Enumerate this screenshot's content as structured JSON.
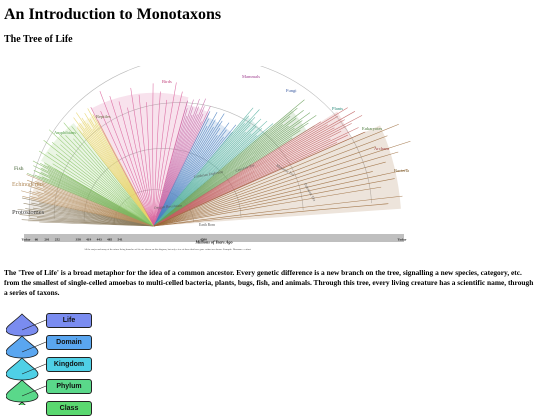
{
  "page": {
    "title": "An Introduction to Monotaxons",
    "subtitle": "The Tree of Life",
    "intro": "The 'Tree of Life' is a broad metaphor for the idea of a common ancestor. Every genetic difference is a new branch on the tree, signalling a new species, category, etc. from the smallest of single-celled amoebas to multi-celled bacteria, plants, bugs, fish, and animals. Through this tree, every living creature has a scientific name, through a series of taxons."
  },
  "tree": {
    "groups": [
      "Protostomes",
      "Echinoderms",
      "Fish",
      "Amphibians",
      "Reptiles",
      "Birds",
      "Mammals",
      "Fungi",
      "Plants",
      "Eukaryotes",
      "Archaea",
      "Bacteria"
    ],
    "eras": [
      "Cambrian Explosion",
      "Cenozoic Era",
      "Mesozoic Era",
      "Paleozoic Era",
      "Oxygen Revolution",
      "Earth Born"
    ],
    "axis_title": "Millions of Years Ago",
    "axis_ticks": [
      "Today",
      "66",
      "201",
      "252",
      "",
      "358",
      "419",
      "443",
      "485",
      "541",
      "",
      "",
      "",
      "",
      "",
      "",
      "",
      "4500",
      "",
      "",
      "",
      "",
      "",
      "",
      "",
      "",
      "",
      "",
      "",
      "",
      "",
      "",
      "",
      "",
      "",
      "",
      "Today"
    ],
    "caption": "All the major and many of the minor living branches of life are shown on this diagram, but only a few of those that have gone extinct are shown. Example: Dinosaurs - extinct",
    "colors": {
      "bacteria": "#8a7a5c",
      "archaea": "#b08a5a",
      "eukaryotes": "#7cb45c",
      "plants": "#8cc66a",
      "fungi": "#e6d36a",
      "protostomes": "#d9609a",
      "echinoderms": "#c86aa8",
      "fish": "#4a7fc0",
      "amphibians": "#56b0a0",
      "reptiles": "#6aa05a",
      "birds": "#c06060",
      "mammals": "#9a6a3a"
    }
  },
  "taxonomy": {
    "levels": [
      "Life",
      "Domain",
      "Kingdom",
      "Phylum",
      "Class"
    ],
    "colors": [
      "#7a8cf0",
      "#5aa6f0",
      "#4fd0e6",
      "#5ad88a",
      "#5ad870"
    ]
  }
}
